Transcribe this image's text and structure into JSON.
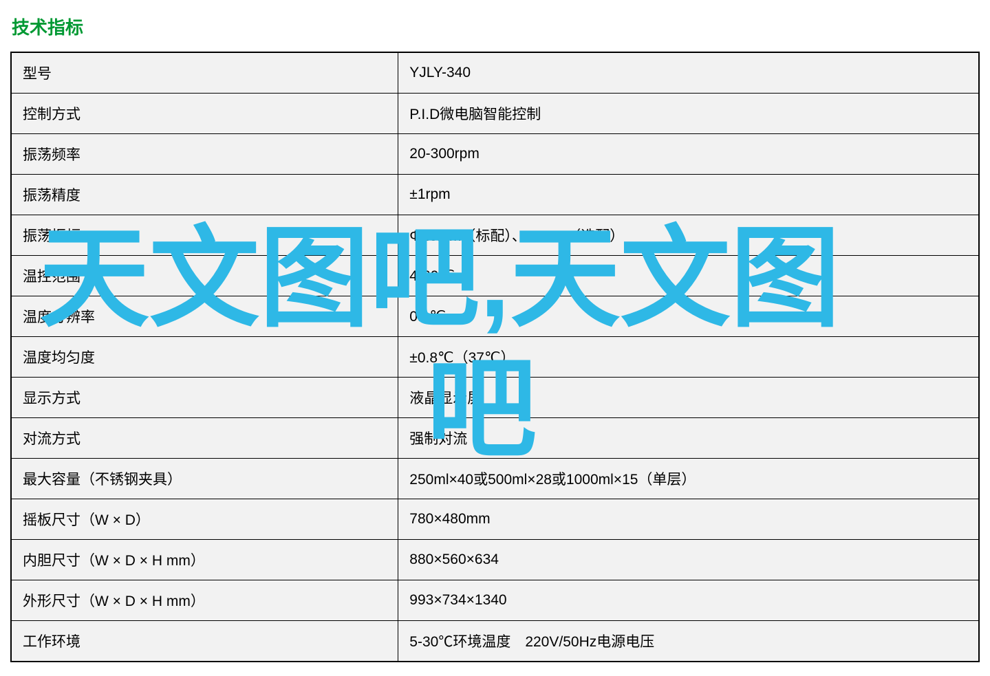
{
  "section_title": "技术指标",
  "section_title_color": "#009933",
  "table": {
    "header_bg": "#f2f2f2",
    "row_bg": "#ffffff",
    "border_color": "#000000",
    "rows": [
      {
        "label": "型号",
        "value": "YJLY-340"
      },
      {
        "label": "控制方式",
        "value": "P.I.D微电脑智能控制"
      },
      {
        "label": "振荡频率",
        "value": "20-300rpm"
      },
      {
        "label": "振荡精度",
        "value": "±1rpm"
      },
      {
        "label": "振荡振幅",
        "value": "Φ26mm（标配）、50mm（选配）"
      },
      {
        "label": "温控范围",
        "value": "4-60℃"
      },
      {
        "label": "温度分辨率",
        "value": "0.1℃"
      },
      {
        "label": "温度均匀度",
        "value": "±0.8℃（37℃）"
      },
      {
        "label": "显示方式",
        "value": "液晶显示屏"
      },
      {
        "label": "对流方式",
        "value": "强制对流"
      },
      {
        "label": "最大容量（不锈钢夹具）",
        "value": "250ml×40或500ml×28或1000ml×15（单层）"
      },
      {
        "label": "摇板尺寸（W × D）",
        "value": "780×480mm"
      },
      {
        "label": "内胆尺寸（W × D × H mm）",
        "value": "880×560×634"
      },
      {
        "label": "外形尺寸（W × D × H mm）",
        "value": "993×734×1340"
      },
      {
        "label": "工作环境",
        "value": "5-30℃环境温度　220V/50Hz电源电压"
      }
    ]
  },
  "watermark": {
    "text_line1": "天文图吧,天文图",
    "text_line2": "吧",
    "color": "#2eb8e6"
  }
}
